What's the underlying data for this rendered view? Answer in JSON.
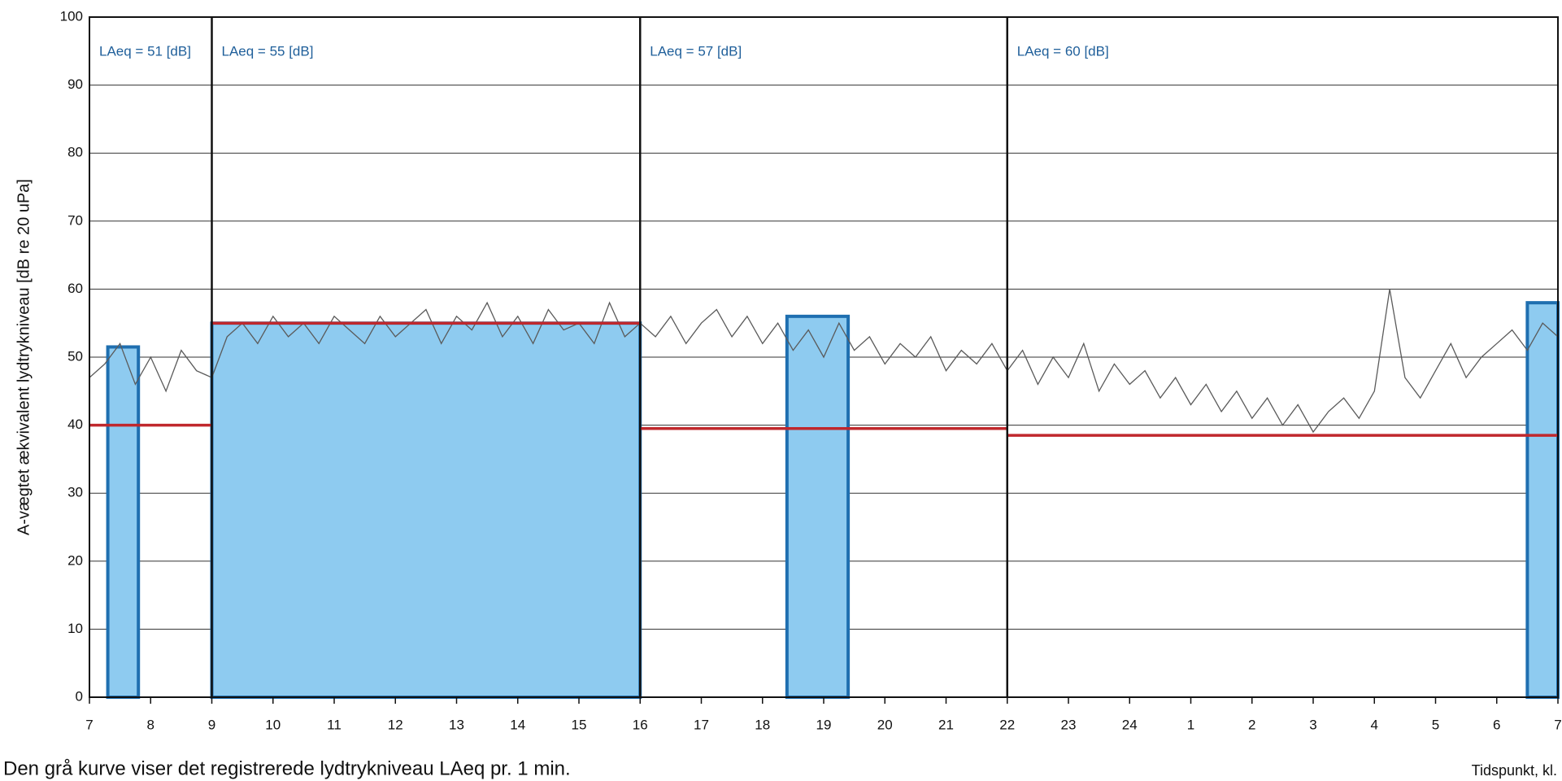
{
  "chart_data": {
    "type": "line",
    "y_label": "A-vægtet ækvivalent lydtrykniveau [dB re 20 uPa]",
    "x_label": "Tidspunkt, kl.",
    "note": "Den grå kurve viser det registrerede lydtrykniveau LAeq pr. 1 min.",
    "xlim": [
      7,
      31
    ],
    "ylim": [
      0,
      100
    ],
    "xticks": [
      7,
      8,
      9,
      10,
      11,
      12,
      13,
      14,
      15,
      16,
      17,
      18,
      19,
      20,
      21,
      22,
      23,
      24,
      {
        "value": 25,
        "label": "1"
      },
      {
        "value": 26,
        "label": "2"
      },
      {
        "value": 27,
        "label": "3"
      },
      {
        "value": 28,
        "label": "4"
      },
      {
        "value": 29,
        "label": "5"
      },
      {
        "value": 30,
        "label": "6"
      },
      {
        "value": 31,
        "label": "7"
      }
    ],
    "yticks": [
      0,
      10,
      20,
      30,
      40,
      50,
      60,
      70,
      80,
      90,
      100
    ],
    "grid": true,
    "series": [
      {
        "color": "#5a5a5a",
        "x": [
          7,
          7.25,
          7.5,
          7.75,
          8,
          8.25,
          8.5,
          8.75,
          9,
          9.25,
          9.5,
          9.75,
          10,
          10.25,
          10.5,
          10.75,
          11,
          11.25,
          11.5,
          11.75,
          12,
          12.25,
          12.5,
          12.75,
          13,
          13.25,
          13.5,
          13.75,
          14,
          14.25,
          14.5,
          14.75,
          15,
          15.25,
          15.5,
          15.75,
          16,
          16.25,
          16.5,
          16.75,
          17,
          17.25,
          17.5,
          17.75,
          18,
          18.25,
          18.5,
          18.75,
          19,
          19.25,
          19.5,
          19.75,
          20,
          20.25,
          20.5,
          20.75,
          21,
          21.25,
          21.5,
          21.75,
          22,
          22.25,
          22.5,
          22.75,
          23,
          23.25,
          23.5,
          23.75,
          24,
          24.25,
          24.5,
          24.75,
          25,
          25.25,
          25.5,
          25.75,
          26,
          26.25,
          26.5,
          26.75,
          27,
          27.25,
          27.5,
          27.75,
          28,
          28.25,
          28.5,
          28.75,
          29,
          29.25,
          29.5,
          29.75,
          30,
          30.25,
          30.5,
          30.75,
          31
        ],
        "values": [
          47,
          49,
          52,
          46,
          50,
          45,
          51,
          48,
          47,
          53,
          55,
          52,
          56,
          53,
          55,
          52,
          56,
          54,
          52,
          56,
          53,
          55,
          57,
          52,
          56,
          54,
          58,
          53,
          56,
          52,
          57,
          54,
          55,
          52,
          58,
          53,
          55,
          53,
          56,
          52,
          55,
          57,
          53,
          56,
          52,
          55,
          51,
          54,
          50,
          55,
          51,
          53,
          49,
          52,
          50,
          53,
          48,
          51,
          49,
          52,
          48,
          51,
          46,
          50,
          47,
          52,
          45,
          49,
          46,
          48,
          44,
          47,
          43,
          46,
          42,
          45,
          41,
          44,
          40,
          43,
          39,
          42,
          44,
          41,
          45,
          60,
          47,
          44,
          48,
          52,
          47,
          50,
          52,
          54,
          51,
          55,
          53
        ]
      }
    ],
    "bars": [
      {
        "start": 7.3,
        "end": 7.8,
        "value": 51.5
      },
      {
        "start": 9,
        "end": 16,
        "value": 55
      },
      {
        "start": 18.4,
        "end": 19.4,
        "value": 56
      },
      {
        "start": 30.5,
        "end": 31,
        "value": 58
      }
    ],
    "bar_color": "#8ecbf0",
    "bar_edge_color": "#1f6fb0",
    "limit_lines": [
      {
        "start": 7,
        "end": 9,
        "value": 40
      },
      {
        "start": 9,
        "end": 16,
        "value": 55
      },
      {
        "start": 16,
        "end": 22,
        "value": 39.5
      },
      {
        "start": 22,
        "end": 31,
        "value": 38.5
      }
    ],
    "limit_color": "#c0282d",
    "periods": [
      {
        "start": 7,
        "end": 9,
        "label": "LAeq = 51 [dB]"
      },
      {
        "start": 9,
        "end": 16,
        "label": "LAeq = 55 [dB]"
      },
      {
        "start": 16,
        "end": 22,
        "label": "LAeq = 57 [dB]"
      },
      {
        "start": 22,
        "end": 31,
        "label": "LAeq = 60 [dB]"
      }
    ],
    "period_label_color": "#1f5f9a"
  }
}
